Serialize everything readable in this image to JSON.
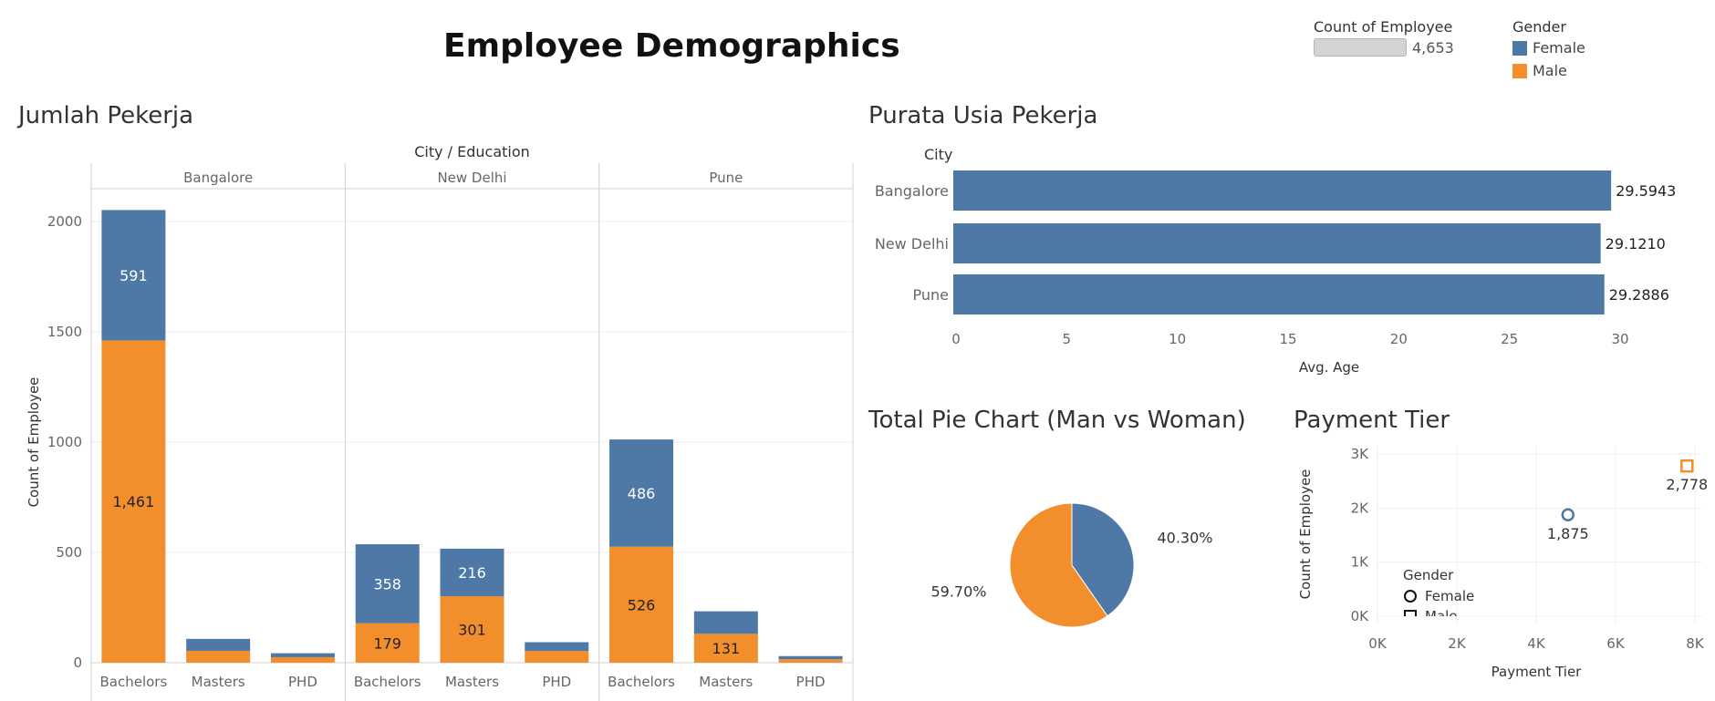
{
  "dashboard": {
    "title": "Employee Demographics",
    "count_filter": {
      "label": "Count of Employee",
      "value": "4,653"
    },
    "gender_legend": {
      "title": "Gender",
      "items": [
        {
          "label": "Female",
          "color": "#4e79a7"
        },
        {
          "label": "Male",
          "color": "#f28e2b"
        }
      ]
    },
    "sections": {
      "jumlah": "Jumlah Pekerja",
      "purata": "Purata Usia Pekerja",
      "pie": "Total Pie Chart (Man vs Woman)",
      "tier": "Payment Tier"
    }
  },
  "chart_data": [
    {
      "type": "bar",
      "stacked": true,
      "header": "City / Education",
      "ylabel": "Count of Employee",
      "ylim": [
        0,
        2000
      ],
      "yticks": [
        0,
        500,
        1000,
        1500,
        2000
      ],
      "groups": [
        "Bangalore",
        "New Delhi",
        "Pune"
      ],
      "categories": [
        "Bachelors",
        "Masters",
        "PHD"
      ],
      "series": [
        {
          "name": "Male",
          "color": "#f28e2b",
          "values": [
            [
              1461,
              54,
              25
            ],
            [
              179,
              301,
              53
            ],
            [
              526,
              131,
              16
            ]
          ],
          "labels": [
            [
              "1,461",
              "",
              ""
            ],
            [
              "179",
              "301",
              ""
            ],
            [
              "526",
              "131",
              ""
            ]
          ]
        },
        {
          "name": "Female",
          "color": "#4e79a7",
          "values": [
            [
              591,
              54,
              18
            ],
            [
              358,
              216,
              40
            ],
            [
              486,
              102,
              14
            ]
          ],
          "labels": [
            [
              "591",
              "",
              ""
            ],
            [
              "358",
              "216",
              ""
            ],
            [
              "486",
              "",
              ""
            ]
          ]
        }
      ]
    },
    {
      "type": "bar",
      "orientation": "horizontal",
      "header": "City",
      "categories": [
        "Bangalore",
        "New Delhi",
        "Pune"
      ],
      "values": [
        29.5943,
        29.121,
        29.2886
      ],
      "labels": [
        "29.5943",
        "29.1210",
        "29.2886"
      ],
      "xlabel": "Avg. Age",
      "xlim": [
        0,
        30
      ],
      "xticks": [
        0,
        5,
        10,
        15,
        20,
        25,
        30
      ]
    },
    {
      "type": "pie",
      "slices": [
        {
          "name": "Female",
          "value": 40.3,
          "label": "40.30%",
          "color": "#4e79a7"
        },
        {
          "name": "Male",
          "value": 59.7,
          "label": "59.70%",
          "color": "#f28e2b"
        }
      ]
    },
    {
      "type": "scatter",
      "xlabel": "Payment Tier",
      "ylabel": "Count of Employee",
      "xticks": [
        "0K",
        "2K",
        "4K",
        "6K",
        "8K"
      ],
      "yticks": [
        "0K",
        "1K",
        "2K",
        "3K"
      ],
      "xlim": [
        0,
        8000
      ],
      "ylim": [
        0,
        3000
      ],
      "points": [
        {
          "series": "Female",
          "x": 4800,
          "y": 1875,
          "label": "1,875",
          "shape": "circle",
          "color": "#4e79a7"
        },
        {
          "series": "Male",
          "x": 7800,
          "y": 2778,
          "label": "2,778",
          "shape": "square",
          "color": "#f28e2b"
        }
      ],
      "legend": {
        "title": "Gender",
        "items": [
          {
            "label": "Female",
            "shape": "circle"
          },
          {
            "label": "Male",
            "shape": "square"
          }
        ]
      }
    }
  ]
}
